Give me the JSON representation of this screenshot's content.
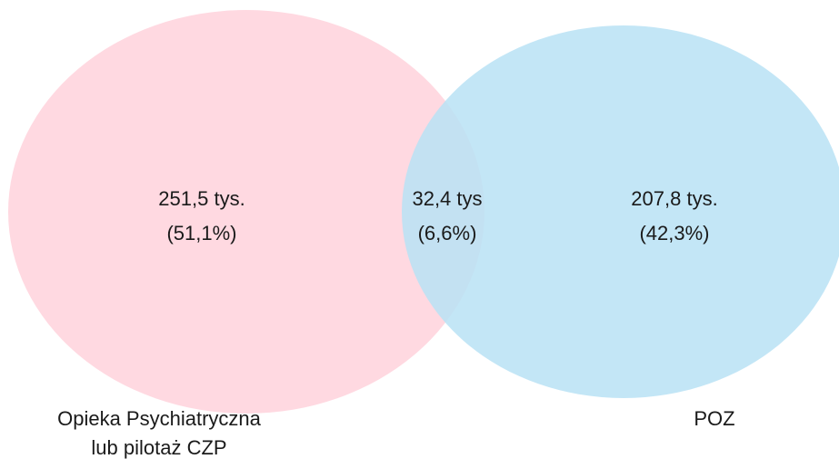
{
  "regions": [
    {
      "count": "251,5 tys.",
      "share": "(51,1%)"
    },
    {
      "count": "32,4 tys",
      "share": "(6,6%)"
    },
    {
      "count": "207,8 tys.",
      "share": "(42,3%)"
    }
  ],
  "sets": [
    {
      "label": [
        "Opieka Psychiatryczna",
        "lub pilotaż CZP"
      ]
    },
    {
      "label": [
        "POZ"
      ]
    }
  ]
}
